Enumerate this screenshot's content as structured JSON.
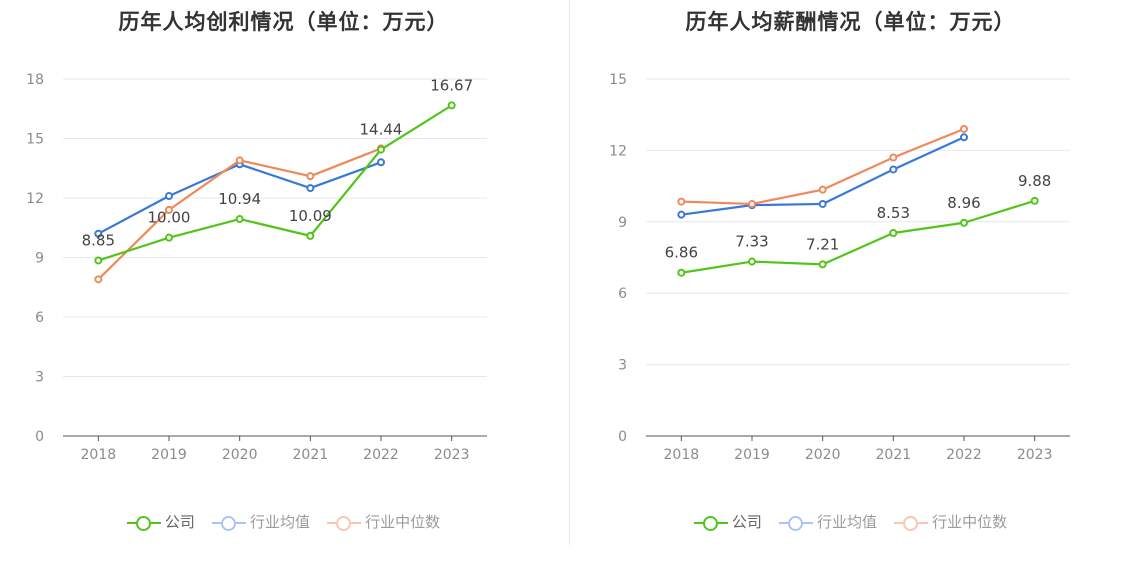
{
  "chart_data": [
    {
      "type": "line",
      "title": "历年人均创利情况（单位：万元）",
      "categories": [
        "2018",
        "2019",
        "2020",
        "2021",
        "2022",
        "2023"
      ],
      "ylim": [
        0,
        18
      ],
      "yticks": [
        "0",
        "3",
        "6",
        "9",
        "12",
        "15",
        "18"
      ],
      "series": [
        {
          "name": "公司",
          "color": "#52c41a",
          "values": [
            8.85,
            10.0,
            10.94,
            10.09,
            14.44,
            16.67
          ],
          "labels": [
            "8.85",
            "10.00",
            "10.94",
            "10.09",
            "14.44",
            "16.67"
          ]
        },
        {
          "name": "行业均值",
          "color": "#3a78d8",
          "values": [
            10.2,
            12.1,
            13.7,
            12.5,
            13.8,
            null
          ]
        },
        {
          "name": "行业中位数",
          "color": "#f0895a",
          "values": [
            7.9,
            11.4,
            13.9,
            13.1,
            14.5,
            null
          ]
        }
      ]
    },
    {
      "type": "line",
      "title": "历年人均薪酬情况（单位：万元）",
      "categories": [
        "2018",
        "2019",
        "2020",
        "2021",
        "2022",
        "2023"
      ],
      "ylim": [
        0,
        15
      ],
      "yticks": [
        "0",
        "3",
        "6",
        "9",
        "12",
        "15"
      ],
      "series": [
        {
          "name": "公司",
          "color": "#52c41a",
          "values": [
            6.86,
            7.33,
            7.21,
            8.53,
            8.96,
            9.88
          ],
          "labels": [
            "6.86",
            "7.33",
            "7.21",
            "8.53",
            "8.96",
            "9.88"
          ]
        },
        {
          "name": "行业均值",
          "color": "#3a78d8",
          "values": [
            9.3,
            9.7,
            9.75,
            11.2,
            12.55,
            null
          ]
        },
        {
          "name": "行业中位数",
          "color": "#f0895a",
          "values": [
            9.85,
            9.75,
            10.35,
            11.7,
            12.9,
            null
          ]
        }
      ]
    }
  ],
  "legend": [
    {
      "label": "公司",
      "color": "#52c41a",
      "faded": false
    },
    {
      "label": "行业均值",
      "color": "#7ea6ef",
      "faded": true
    },
    {
      "label": "行业中位数",
      "color": "#f7a98a",
      "faded": true
    }
  ]
}
